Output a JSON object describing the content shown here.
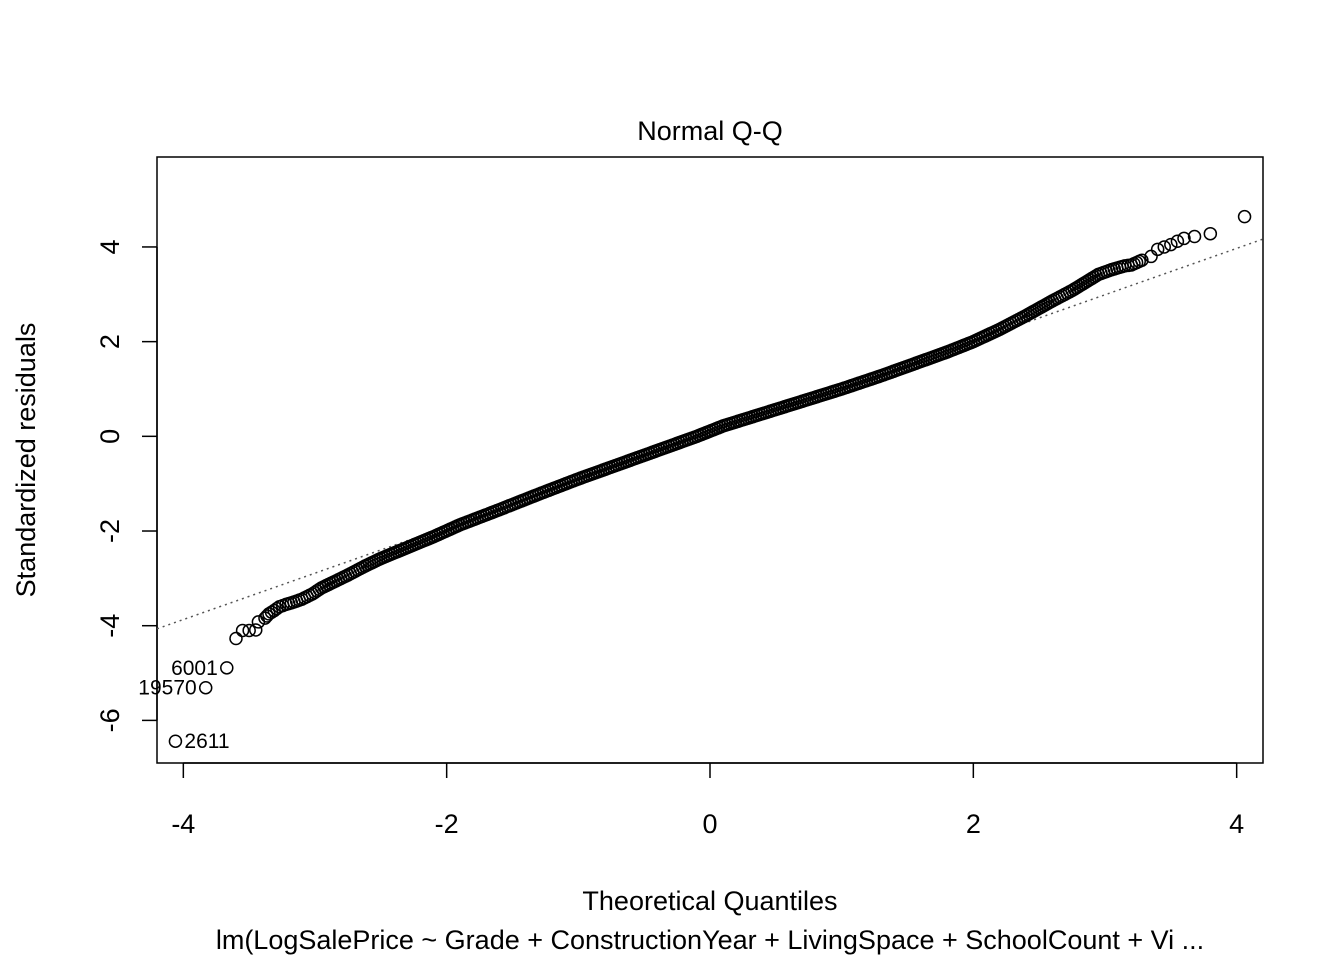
{
  "chart_data": {
    "type": "scatter",
    "title": "Normal Q-Q",
    "xlabel": "Theoretical Quantiles",
    "ylabel": "Standardized residuals",
    "subtitle": "lm(LogSalePrice ~ Grade + ConstructionYear + LivingSpace + SchoolCount + Vi ...",
    "xlim": [
      -4.2,
      4.2
    ],
    "ylim": [
      -6.9,
      5.9
    ],
    "x_ticks": [
      -4,
      -2,
      0,
      2,
      4
    ],
    "y_ticks": [
      -6,
      -4,
      -2,
      0,
      2,
      4
    ],
    "grid": false,
    "reference_line": {
      "slope": 0.98,
      "intercept": 0.05,
      "style": "dotted"
    },
    "points": [
      {
        "x": -4.06,
        "y": -6.44
      },
      {
        "x": -3.83,
        "y": -5.31
      },
      {
        "x": -3.67,
        "y": -4.89
      },
      {
        "x": -3.6,
        "y": -4.27
      },
      {
        "x": -3.55,
        "y": -4.1
      },
      {
        "x": -3.5,
        "y": -4.1
      },
      {
        "x": -3.45,
        "y": -4.09
      },
      {
        "x": -3.43,
        "y": -3.92
      },
      {
        "x": -3.38,
        "y": -3.84
      },
      {
        "x": -3.35,
        "y": -3.75
      },
      {
        "x": -3.31,
        "y": -3.68
      },
      {
        "x": -3.27,
        "y": -3.6
      },
      {
        "x": -3.22,
        "y": -3.55
      },
      {
        "x": -3.16,
        "y": -3.5
      },
      {
        "x": -3.1,
        "y": -3.44
      },
      {
        "x": -3.02,
        "y": -3.33
      },
      {
        "x": -2.95,
        "y": -3.2
      },
      {
        "x": -2.86,
        "y": -3.08
      },
      {
        "x": -2.75,
        "y": -2.93
      },
      {
        "x": -2.62,
        "y": -2.74
      },
      {
        "x": -2.5,
        "y": -2.58
      },
      {
        "x": -2.3,
        "y": -2.35
      },
      {
        "x": -2.1,
        "y": -2.12
      },
      {
        "x": -1.9,
        "y": -1.87
      },
      {
        "x": -1.6,
        "y": -1.55
      },
      {
        "x": -1.3,
        "y": -1.22
      },
      {
        "x": -1.0,
        "y": -0.9
      },
      {
        "x": -0.7,
        "y": -0.6
      },
      {
        "x": -0.4,
        "y": -0.3
      },
      {
        "x": -0.1,
        "y": 0.0
      },
      {
        "x": 0.1,
        "y": 0.22
      },
      {
        "x": 0.4,
        "y": 0.48
      },
      {
        "x": 0.7,
        "y": 0.74
      },
      {
        "x": 1.0,
        "y": 1.0
      },
      {
        "x": 1.3,
        "y": 1.28
      },
      {
        "x": 1.6,
        "y": 1.58
      },
      {
        "x": 1.8,
        "y": 1.78
      },
      {
        "x": 2.0,
        "y": 2.0
      },
      {
        "x": 2.2,
        "y": 2.26
      },
      {
        "x": 2.4,
        "y": 2.55
      },
      {
        "x": 2.6,
        "y": 2.86
      },
      {
        "x": 2.75,
        "y": 3.08
      },
      {
        "x": 2.85,
        "y": 3.25
      },
      {
        "x": 2.95,
        "y": 3.42
      },
      {
        "x": 3.05,
        "y": 3.52
      },
      {
        "x": 3.15,
        "y": 3.6
      },
      {
        "x": 3.2,
        "y": 3.62
      },
      {
        "x": 3.28,
        "y": 3.72
      },
      {
        "x": 3.35,
        "y": 3.8
      },
      {
        "x": 3.4,
        "y": 3.95
      },
      {
        "x": 3.45,
        "y": 4.0
      },
      {
        "x": 3.5,
        "y": 4.05
      },
      {
        "x": 3.55,
        "y": 4.12
      },
      {
        "x": 3.6,
        "y": 4.18
      },
      {
        "x": 3.68,
        "y": 4.22
      },
      {
        "x": 3.8,
        "y": 4.28
      },
      {
        "x": 4.06,
        "y": 4.64
      }
    ],
    "labeled_points": [
      {
        "label": "2611",
        "x": -4.06,
        "y": -6.44,
        "side": "right"
      },
      {
        "label": "19570",
        "x": -3.83,
        "y": -5.31,
        "side": "left"
      },
      {
        "label": "6001",
        "x": -3.67,
        "y": -4.89,
        "side": "left"
      }
    ]
  }
}
